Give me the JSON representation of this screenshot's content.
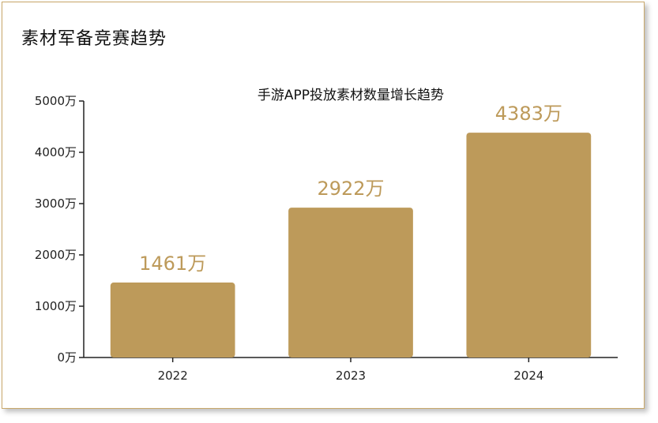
{
  "header": {
    "title": "素材军备竞赛趋势"
  },
  "chart_data": {
    "type": "bar",
    "title": "手游APP投放素材数量增长趋势",
    "categories": [
      "2022",
      "2023",
      "2024"
    ],
    "values": [
      1461,
      2922,
      4383
    ],
    "data_labels": [
      "1461万",
      "2922万",
      "4383万"
    ],
    "y_ticks": [
      "0万",
      "1000万",
      "2000万",
      "3000万",
      "4000万",
      "5000万"
    ],
    "ylim": [
      0,
      5000
    ],
    "xlabel": "",
    "ylabel": "",
    "grid": false,
    "colors": {
      "bar": "#bd9a5a",
      "label": "#bd9a5a",
      "axis": "#222222"
    }
  }
}
